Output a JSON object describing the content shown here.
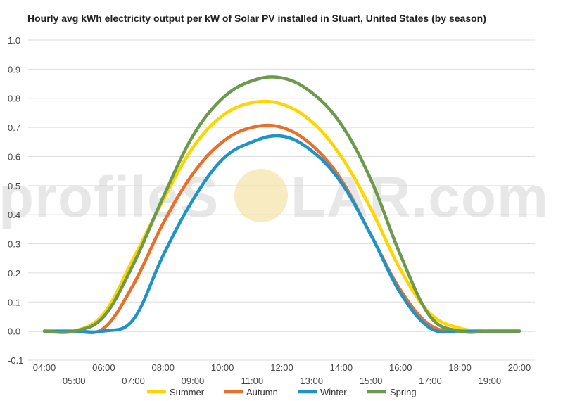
{
  "chart_data": {
    "type": "line",
    "title": "Hourly avg kWh electricity output per kW of Solar PV installed in Stuart, United States (by season)",
    "xlabel": "",
    "ylabel": "",
    "x": [
      "04:00",
      "05:00",
      "06:00",
      "07:00",
      "08:00",
      "09:00",
      "10:00",
      "11:00",
      "12:00",
      "13:00",
      "14:00",
      "15:00",
      "16:00",
      "17:00",
      "18:00",
      "19:00",
      "20:00"
    ],
    "ylim": [
      -0.1,
      1.0
    ],
    "yticks": [
      "-0.1",
      "0.0",
      "0.1",
      "0.2",
      "0.3",
      "0.4",
      "0.5",
      "0.6",
      "0.7",
      "0.8",
      "0.9",
      "1.0"
    ],
    "grid": true,
    "legend_position": "bottom",
    "series": [
      {
        "name": "Summer",
        "color": "#FFD500",
        "values": [
          0.0,
          0.0,
          0.06,
          0.25,
          0.45,
          0.63,
          0.74,
          0.785,
          0.78,
          0.72,
          0.6,
          0.42,
          0.21,
          0.06,
          0.01,
          0.0,
          0.0
        ]
      },
      {
        "name": "Autumn",
        "color": "#E8702A",
        "values": [
          0.0,
          0.0,
          0.01,
          0.16,
          0.37,
          0.54,
          0.65,
          0.7,
          0.7,
          0.64,
          0.52,
          0.33,
          0.14,
          0.02,
          0.0,
          0.0,
          0.0
        ]
      },
      {
        "name": "Winter",
        "color": "#1F93C7",
        "values": [
          0.0,
          0.0,
          0.0,
          0.04,
          0.26,
          0.45,
          0.59,
          0.65,
          0.67,
          0.62,
          0.51,
          0.33,
          0.13,
          0.01,
          0.0,
          0.0,
          0.0
        ]
      },
      {
        "name": "Spring",
        "color": "#6B9A4D",
        "values": [
          0.0,
          0.0,
          0.05,
          0.23,
          0.46,
          0.67,
          0.8,
          0.86,
          0.87,
          0.82,
          0.71,
          0.52,
          0.26,
          0.05,
          0.0,
          0.0,
          0.0
        ]
      }
    ]
  },
  "watermark": {
    "text_left": "profileS",
    "text_right": "LAR.com",
    "sun_color": "#F5E3A8"
  }
}
